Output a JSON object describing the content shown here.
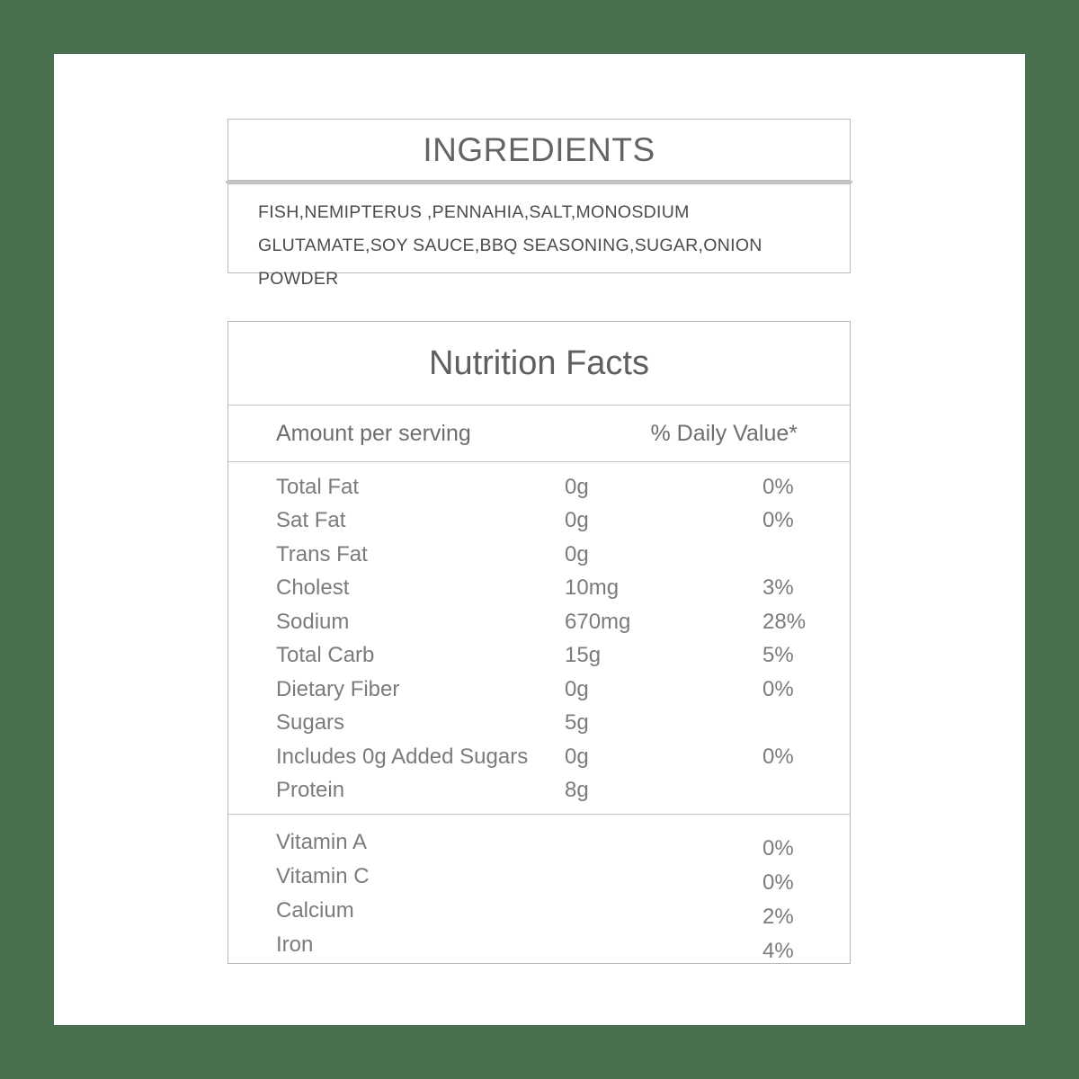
{
  "colors": {
    "frame_green": "#48704f",
    "panel_white": "#ffffff",
    "border_gray": "#bcbcbc",
    "text_gray": "#6e6e6e"
  },
  "ingredients": {
    "title": "INGREDIENTS",
    "text": "FISH,NEMIPTERUS ,PENNAHIA,SALT,MONOSDIUM GLUTAMATE,SOY SAUCE,BBQ SEASONING,SUGAR,ONION POWDER"
  },
  "nutrition": {
    "title": "Nutrition Facts",
    "amount_header": "Amount per serving",
    "daily_value_header": "% Daily Value*",
    "rows": [
      {
        "label": "Total Fat",
        "amount": "0g",
        "dv": "0%"
      },
      {
        "label": "Sat Fat",
        "amount": "0g",
        "dv": "0%"
      },
      {
        "label": "Trans Fat",
        "amount": "0g",
        "dv": ""
      },
      {
        "label": "Cholest",
        "amount": "10mg",
        "dv": "3%"
      },
      {
        "label": "Sodium",
        "amount": "670mg",
        "dv": "28%"
      },
      {
        "label": "Total Carb",
        "amount": "15g",
        "dv": "5%"
      },
      {
        "label": "Dietary Fiber",
        "amount": "0g",
        "dv": "0%"
      },
      {
        "label": "Sugars",
        "amount": "5g",
        "dv": ""
      },
      {
        "label": "Includes 0g Added Sugars",
        "amount": "0g",
        "dv": "0%"
      },
      {
        "label": "Protein",
        "amount": "8g",
        "dv": ""
      }
    ],
    "vitamins": [
      {
        "label": "Vitamin A",
        "dv": "0%"
      },
      {
        "label": "Vitamin C",
        "dv": "0%"
      },
      {
        "label": "Calcium",
        "dv": "2%"
      },
      {
        "label": "Iron",
        "dv": "4%"
      }
    ]
  }
}
